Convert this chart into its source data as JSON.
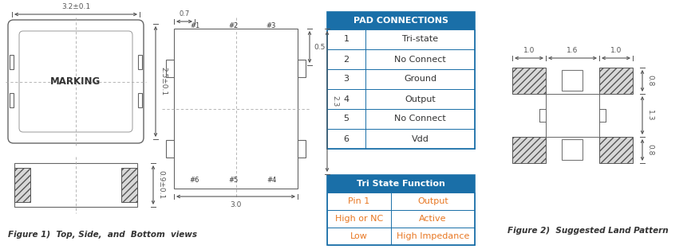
{
  "fig_width": 8.76,
  "fig_height": 3.13,
  "bg_color": "#ffffff",
  "blue_header": "#1a6fa8",
  "orange_text": "#e87722",
  "pad_table_header": "PAD CONNECTIONS",
  "pad_rows": [
    [
      "1",
      "Tri-state"
    ],
    [
      "2",
      "No Connect"
    ],
    [
      "3",
      "Ground"
    ],
    [
      "4",
      "Output"
    ],
    [
      "5",
      "No Connect"
    ],
    [
      "6",
      "Vdd"
    ]
  ],
  "tri_table_header": "Tri State Function",
  "tri_rows": [
    [
      "Pin 1",
      "Output"
    ],
    [
      "High or NC",
      "Active"
    ],
    [
      "Low",
      "High Impedance"
    ]
  ],
  "fig1_caption": "Figure 1)  Top, Side,  and  Bottom  views",
  "fig2_caption": "Figure 2)  Suggested Land Pattern"
}
